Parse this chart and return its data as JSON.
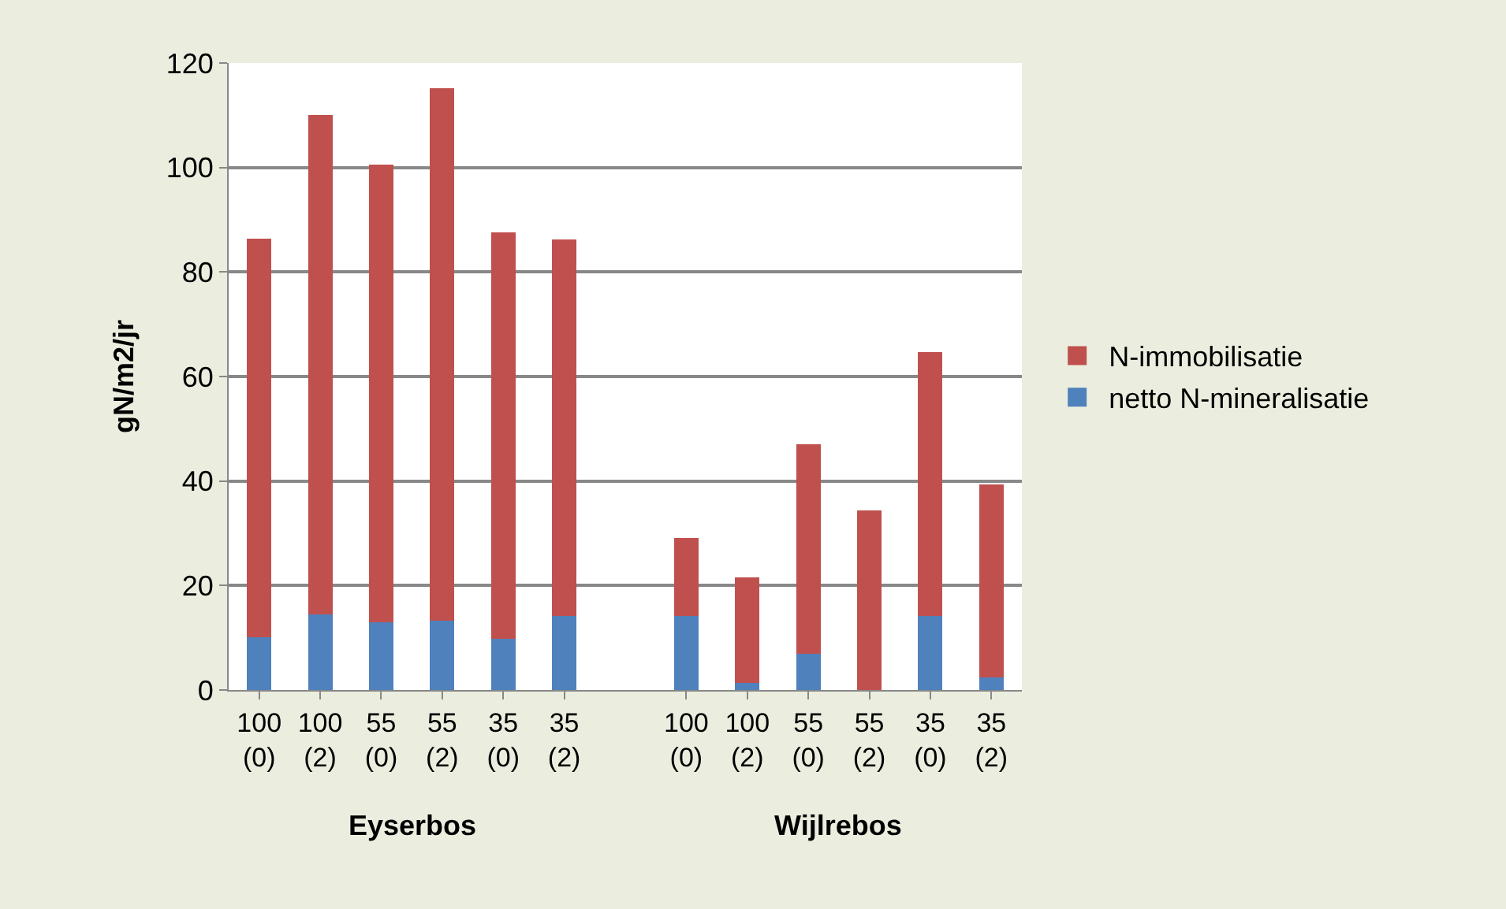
{
  "chart_data": {
    "type": "bar",
    "stacked": true,
    "ylabel": "gN/m2/jr",
    "categories": [
      "100 (0)",
      "100 (2)",
      "55 (0)",
      "55 (2)",
      "35 (0)",
      "35 (2)",
      null,
      "100 (0)",
      "100 (2)",
      "55 (0)",
      "55 (2)",
      "35 (0)",
      "35 (2)"
    ],
    "series": [
      {
        "name": "netto N-mineralisatie",
        "color": "#4f81bd",
        "values": [
          10.1,
          14.5,
          13.0,
          13.2,
          9.8,
          14.2,
          null,
          14.1,
          1.3,
          6.9,
          0,
          14.1,
          2.4
        ]
      },
      {
        "name": "N-immobilisatie",
        "color": "#c0504d",
        "values": [
          76.3,
          95.6,
          87.5,
          102.0,
          77.8,
          72.1,
          null,
          15.0,
          20.2,
          40.1,
          34.4,
          50.6,
          36.9
        ]
      }
    ],
    "annotations": [
      "Eyserbos",
      "Wijlrebos"
    ],
    "ylim": [
      0,
      120
    ],
    "yticks": [
      0,
      20,
      40,
      60,
      80,
      100,
      120
    ],
    "grid": "y",
    "legend": "right"
  }
}
